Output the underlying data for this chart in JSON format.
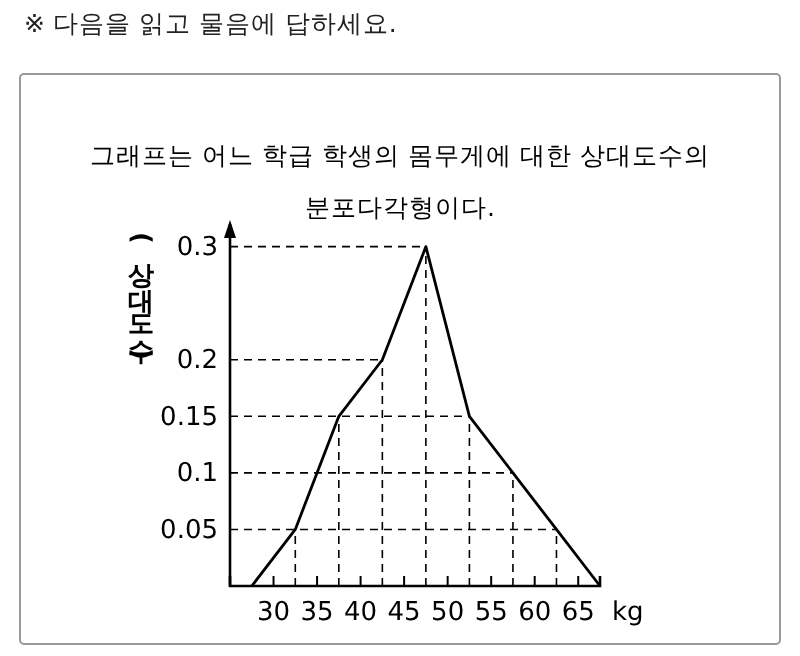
{
  "chart_data": {
    "type": "line",
    "title": "그래프는 어느 학급 학생의 몸무게에 대한 상대도수의 분포다각형이다.",
    "annotations": [
      "※ 다음을 읽고 물음에 답하세요."
    ],
    "ylabel": "(상대도수)",
    "xlabel": "kg",
    "x": [
      27.5,
      32.5,
      37.5,
      42.5,
      47.5,
      52.5,
      57.5,
      62.5,
      67.5
    ],
    "series": [
      {
        "color": "#000000",
        "values": [
          0,
          0.05,
          0.15,
          0.2,
          0.3,
          0.15,
          0.1,
          0.05,
          0
        ]
      }
    ],
    "xlim": [
      25,
      67.5
    ],
    "xticks": [
      30,
      35,
      40,
      45,
      50,
      55,
      60,
      65
    ],
    "ylim": [
      0,
      0.32
    ],
    "yticks": [
      0.05,
      0.1,
      0.15,
      0.2,
      0.3
    ],
    "ref_lines": [
      {
        "axis": "y",
        "value": 0.05
      },
      {
        "axis": "y",
        "value": 0.1
      },
      {
        "axis": "y",
        "value": 0.15
      },
      {
        "axis": "y",
        "value": 0.2
      },
      {
        "axis": "y",
        "value": 0.3
      },
      {
        "axis": "x",
        "value": 32.5
      },
      {
        "axis": "x",
        "value": 37.5
      },
      {
        "axis": "x",
        "value": 42.5
      },
      {
        "axis": "x",
        "value": 47.5
      },
      {
        "axis": "x",
        "value": 52.5
      },
      {
        "axis": "x",
        "value": 57.5
      },
      {
        "axis": "x",
        "value": 62.5
      }
    ],
    "grid": false,
    "marker": "none",
    "line_style": "solid"
  }
}
